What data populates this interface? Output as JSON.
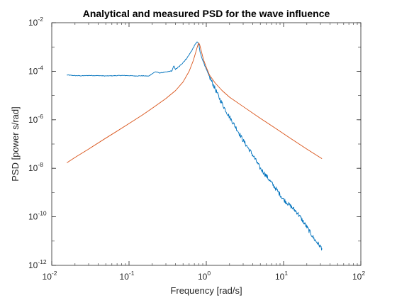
{
  "chart_data": {
    "type": "line",
    "title": "Analytical and measured PSD for the wave influence",
    "xlabel": "Frequency [rad/s]",
    "ylabel": "PSD [power s/rad]",
    "xscale": "log",
    "yscale": "log",
    "xlim": [
      0.01,
      100
    ],
    "ylim": [
      1e-12,
      0.01
    ],
    "grid": false,
    "box": true,
    "xticks": [
      {
        "value": 0.01,
        "base": "10",
        "exp": "-2"
      },
      {
        "value": 0.1,
        "base": "10",
        "exp": "-1"
      },
      {
        "value": 1,
        "base": "10",
        "exp": "0"
      },
      {
        "value": 10,
        "base": "10",
        "exp": "1"
      },
      {
        "value": 100,
        "base": "10",
        "exp": "2"
      }
    ],
    "yticks": [
      {
        "value": 1e-12,
        "base": "10",
        "exp": "-12"
      },
      {
        "value": 1e-10,
        "base": "10",
        "exp": "-10"
      },
      {
        "value": 1e-08,
        "base": "10",
        "exp": "-8"
      },
      {
        "value": 1e-06,
        "base": "10",
        "exp": "-6"
      },
      {
        "value": 0.0001,
        "base": "10",
        "exp": "-4"
      },
      {
        "value": 0.01,
        "base": "10",
        "exp": "-2"
      }
    ],
    "series": [
      {
        "color": "#0072BD",
        "kind": "measured",
        "x": [
          0.0157,
          0.02,
          0.025,
          0.03,
          0.04,
          0.05,
          0.06,
          0.08,
          0.1,
          0.12,
          0.15,
          0.18,
          0.2,
          0.22,
          0.25,
          0.28,
          0.3,
          0.33,
          0.36,
          0.38,
          0.4,
          0.45,
          0.5,
          0.55,
          0.6,
          0.65,
          0.7,
          0.74,
          0.77,
          0.8,
          0.83,
          0.87,
          0.92,
          1.0,
          1.1,
          1.25,
          1.5,
          1.8,
          2.0,
          2.5,
          3.0,
          4.0,
          5.0,
          6.0,
          8.0,
          10.0,
          12.0,
          15.0,
          20.0,
          25.0,
          31.4
        ],
        "y": [
          7e-05,
          6.6e-05,
          6.5e-05,
          6.7e-05,
          6.6e-05,
          6.4e-05,
          6.5e-05,
          6.7e-05,
          6.6e-05,
          6.4e-05,
          6.5e-05,
          6.3e-05,
          8e-05,
          9.5e-05,
          8.5e-05,
          9e-05,
          9.2e-05,
          9.8e-05,
          0.000105,
          0.000165,
          0.00012,
          0.00016,
          0.00023,
          0.00032,
          0.00048,
          0.00072,
          0.0011,
          0.0015,
          0.0016,
          0.0013,
          0.00062,
          0.00038,
          0.00024,
          0.00012,
          5.8e-05,
          2.5e-05,
          7e-06,
          2.3e-06,
          1.3e-06,
          4e-07,
          1.4e-07,
          3.5e-08,
          1e-08,
          4.8e-09,
          1.4e-09,
          5.2e-10,
          3e-10,
          1.5e-10,
          3.8e-11,
          1.2e-11,
          5e-12
        ]
      },
      {
        "color": "#D95319",
        "kind": "analytical",
        "x": [
          0.0157,
          0.02,
          0.03,
          0.05,
          0.07,
          0.1,
          0.15,
          0.2,
          0.3,
          0.4,
          0.5,
          0.6,
          0.68,
          0.74,
          0.78,
          0.8,
          0.82,
          0.86,
          0.92,
          1.0,
          1.1,
          1.3,
          1.6,
          2.0,
          3.0,
          5.0,
          8.0,
          12.0,
          20.0,
          31.4
        ],
        "y": [
          1.7e-08,
          2.8e-08,
          6.2e-08,
          1.75e-07,
          3.4e-07,
          7e-07,
          1.6e-06,
          3e-06,
          7.5e-06,
          1.6e-05,
          3.6e-05,
          0.0001,
          0.00028,
          0.0007,
          0.00125,
          0.00145,
          0.00125,
          0.0007,
          0.0003,
          0.000145,
          7e-05,
          3.3e-05,
          1.6e-05,
          8.5e-06,
          3.5e-06,
          1.15e-06,
          4.3e-07,
          1.8e-07,
          6.2e-08,
          2.5e-08
        ]
      }
    ]
  }
}
